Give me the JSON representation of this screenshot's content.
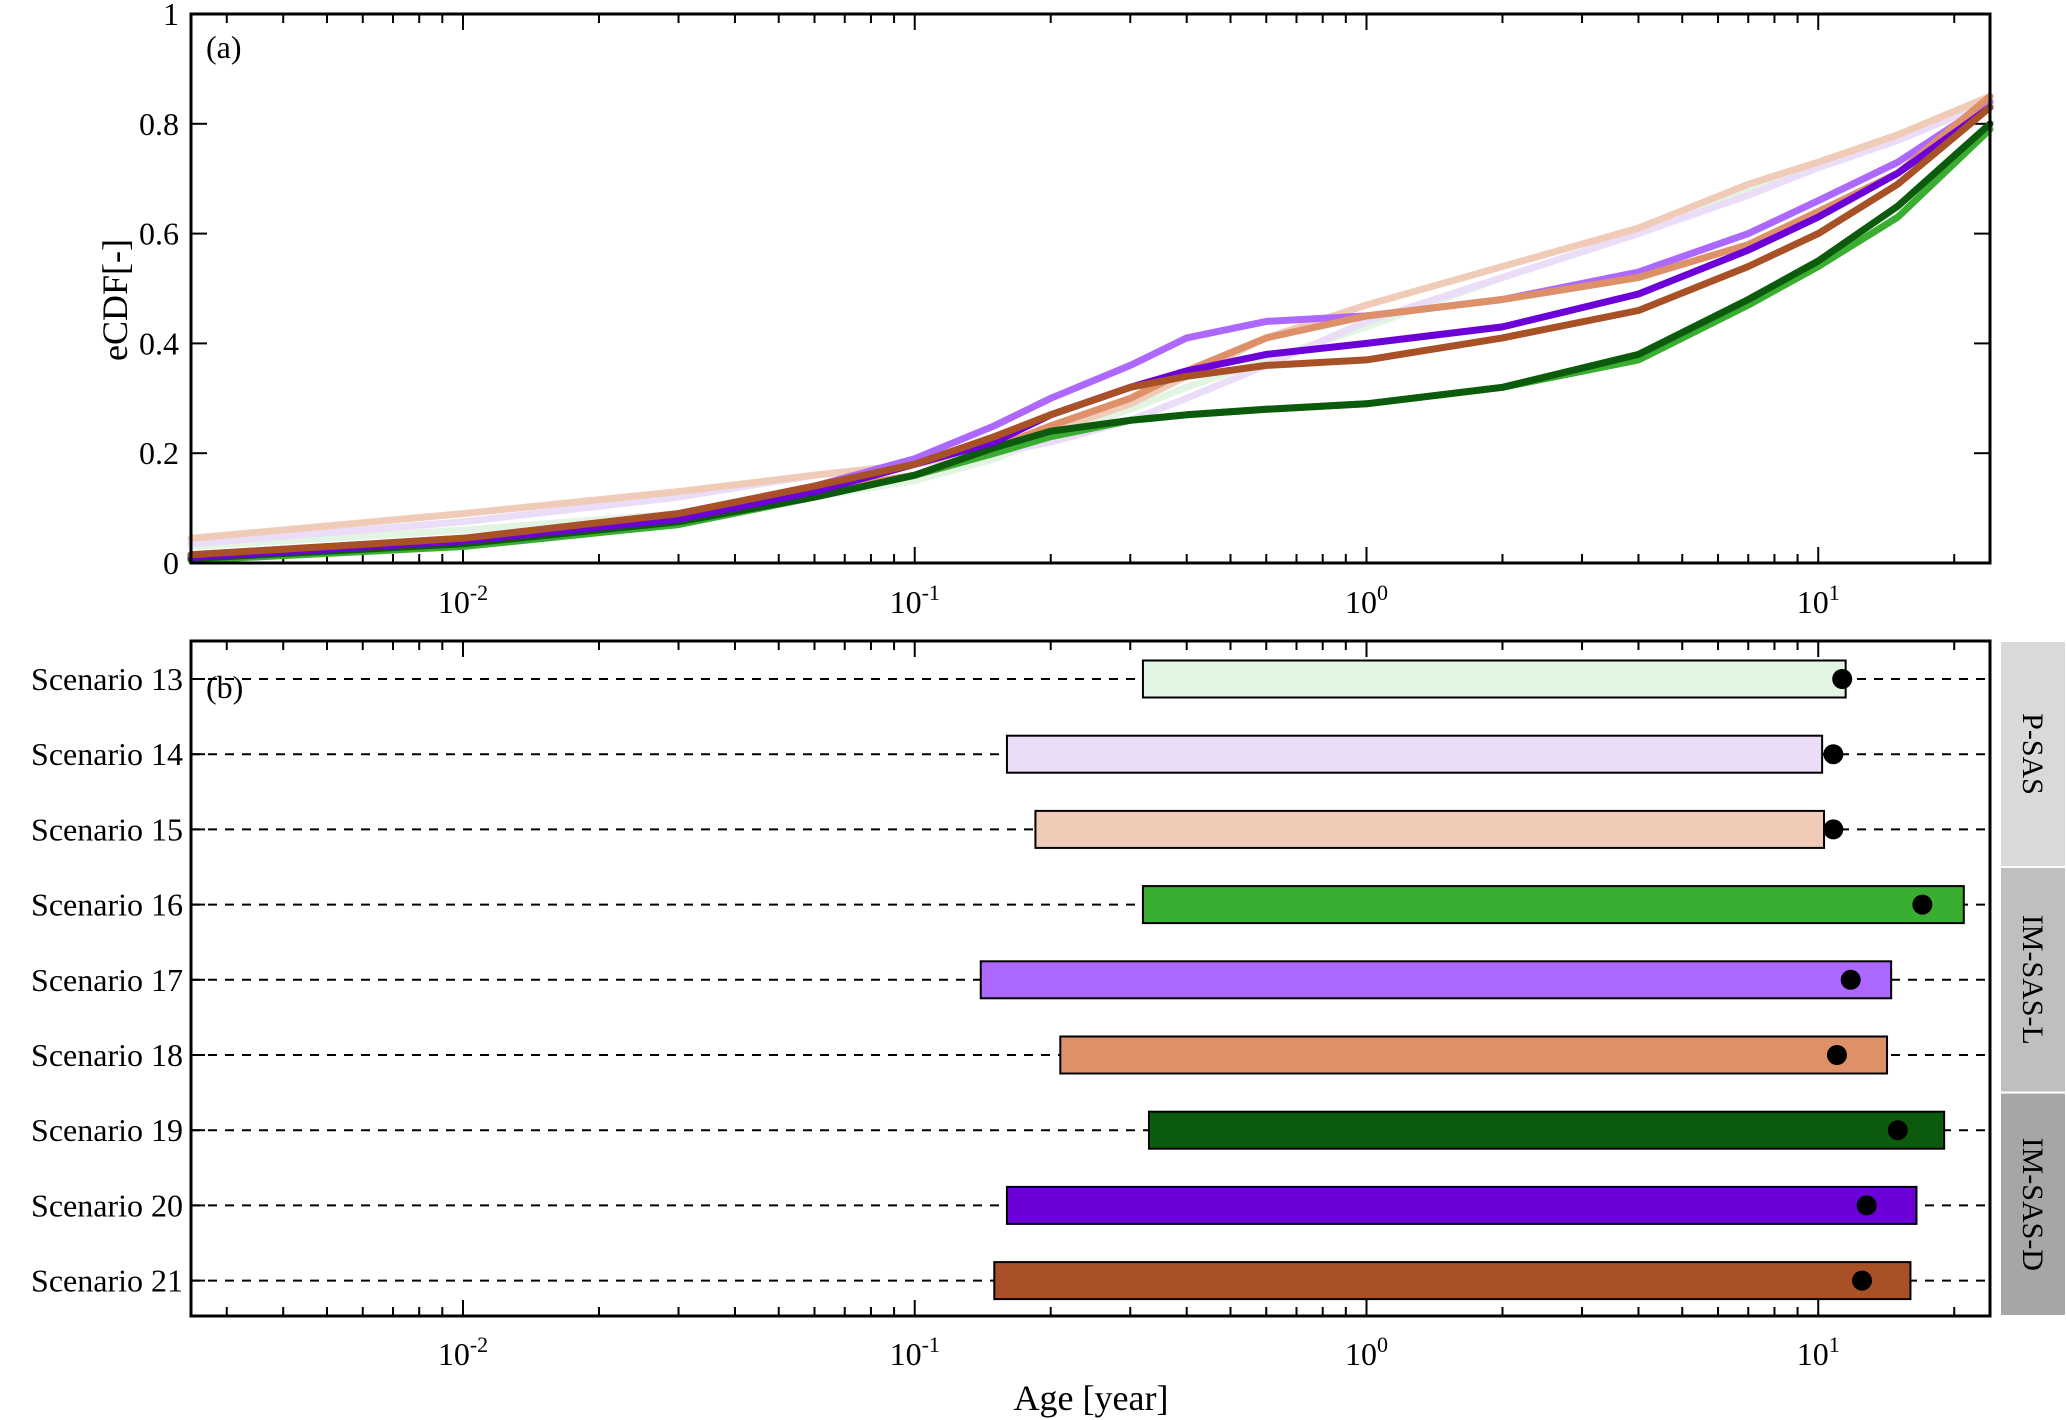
{
  "chart_data": [
    {
      "type": "line",
      "panel_label": "(a)",
      "ylabel": "eCDF[-]",
      "xlabel": "",
      "xscale": "log",
      "xlim": [
        0.0025,
        24
      ],
      "ylim": [
        0,
        1
      ],
      "yticks": [
        "0",
        "0.2",
        "0.4",
        "0.6",
        "0.8",
        "1"
      ],
      "xticks": [
        {
          "base": "10",
          "exp": "-2",
          "value": 0.01
        },
        {
          "base": "10",
          "exp": "-1",
          "value": 0.1
        },
        {
          "base": "10",
          "exp": "0",
          "value": 1
        },
        {
          "base": "10",
          "exp": "1",
          "value": 10
        }
      ],
      "x": [
        0.0025,
        0.01,
        0.03,
        0.06,
        0.1,
        0.15,
        0.2,
        0.3,
        0.4,
        0.6,
        1,
        2,
        4,
        7,
        10,
        15,
        24
      ],
      "series": [
        {
          "color": "#e2f4e2",
          "values": [
            0.03,
            0.06,
            0.09,
            0.12,
            0.15,
            0.19,
            0.23,
            0.28,
            0.32,
            0.37,
            0.43,
            0.52,
            0.6,
            0.68,
            0.72,
            0.77,
            0.84
          ]
        },
        {
          "color": "#ebdcf8",
          "values": [
            0.035,
            0.075,
            0.12,
            0.16,
            0.18,
            0.2,
            0.22,
            0.26,
            0.3,
            0.36,
            0.44,
            0.52,
            0.6,
            0.67,
            0.72,
            0.77,
            0.84
          ]
        },
        {
          "color": "#f0ccb8",
          "values": [
            0.045,
            0.09,
            0.13,
            0.16,
            0.18,
            0.21,
            0.24,
            0.29,
            0.34,
            0.41,
            0.47,
            0.54,
            0.61,
            0.69,
            0.73,
            0.78,
            0.85
          ]
        },
        {
          "color": "#3aae30",
          "values": [
            0.005,
            0.03,
            0.07,
            0.12,
            0.16,
            0.2,
            0.23,
            0.26,
            0.27,
            0.28,
            0.29,
            0.32,
            0.37,
            0.47,
            0.54,
            0.63,
            0.79
          ]
        },
        {
          "color": "#ac68ff",
          "values": [
            0.015,
            0.045,
            0.09,
            0.14,
            0.19,
            0.25,
            0.3,
            0.36,
            0.41,
            0.44,
            0.45,
            0.48,
            0.53,
            0.6,
            0.66,
            0.73,
            0.84
          ]
        },
        {
          "color": "#de9068",
          "values": [
            0.012,
            0.04,
            0.08,
            0.13,
            0.16,
            0.21,
            0.25,
            0.3,
            0.35,
            0.41,
            0.45,
            0.48,
            0.52,
            0.58,
            0.64,
            0.71,
            0.85
          ]
        },
        {
          "color": "#0c5a0c",
          "values": [
            0.008,
            0.035,
            0.075,
            0.12,
            0.16,
            0.21,
            0.24,
            0.26,
            0.27,
            0.28,
            0.29,
            0.32,
            0.38,
            0.48,
            0.55,
            0.65,
            0.8
          ]
        },
        {
          "color": "#6b00d8",
          "values": [
            0.01,
            0.04,
            0.08,
            0.13,
            0.18,
            0.22,
            0.27,
            0.32,
            0.35,
            0.38,
            0.4,
            0.43,
            0.49,
            0.57,
            0.63,
            0.71,
            0.83
          ]
        },
        {
          "color": "#a85026",
          "values": [
            0.015,
            0.045,
            0.09,
            0.14,
            0.18,
            0.23,
            0.27,
            0.32,
            0.34,
            0.36,
            0.37,
            0.41,
            0.46,
            0.54,
            0.6,
            0.69,
            0.83
          ]
        }
      ]
    },
    {
      "type": "bar",
      "orientation": "horizontal",
      "panel_label": "(b)",
      "xlabel": "Age [year]",
      "ylabel": "",
      "xscale": "log",
      "xlim": [
        0.0025,
        24
      ],
      "xticks": [
        {
          "base": "10",
          "exp": "-2",
          "value": 0.01
        },
        {
          "base": "10",
          "exp": "-1",
          "value": 0.1
        },
        {
          "base": "10",
          "exp": "0",
          "value": 1
        },
        {
          "base": "10",
          "exp": "1",
          "value": 10
        }
      ],
      "categories": [
        "Scenario 13",
        "Scenario 14",
        "Scenario 15",
        "Scenario 16",
        "Scenario 17",
        "Scenario 18",
        "Scenario 19",
        "Scenario 20",
        "Scenario 21"
      ],
      "bars": [
        {
          "start": 0.32,
          "end": 11.5,
          "dot": 11.3,
          "color": "#e2f4e2"
        },
        {
          "start": 0.16,
          "end": 10.2,
          "dot": 10.8,
          "color": "#ebdcf8"
        },
        {
          "start": 0.185,
          "end": 10.3,
          "dot": 10.8,
          "color": "#f0ccb8"
        },
        {
          "start": 0.32,
          "end": 21.0,
          "dot": 17.0,
          "color": "#3aae30"
        },
        {
          "start": 0.14,
          "end": 14.5,
          "dot": 11.8,
          "color": "#ac68ff"
        },
        {
          "start": 0.21,
          "end": 14.2,
          "dot": 11.0,
          "color": "#de9068"
        },
        {
          "start": 0.33,
          "end": 19.0,
          "dot": 15.0,
          "color": "#0c5a0c"
        },
        {
          "start": 0.16,
          "end": 16.5,
          "dot": 12.8,
          "color": "#6b00d8"
        },
        {
          "start": 0.15,
          "end": 16.0,
          "dot": 12.5,
          "color": "#a85026"
        }
      ],
      "groups": [
        {
          "label": "P-SAS",
          "color": "#d9d9d9",
          "from": 0,
          "to": 2
        },
        {
          "label": "IM-SAS-L",
          "color": "#bfbfbf",
          "from": 3,
          "to": 5
        },
        {
          "label": "IM-SAS-D",
          "color": "#a6a6a6",
          "from": 6,
          "to": 8
        }
      ]
    }
  ]
}
